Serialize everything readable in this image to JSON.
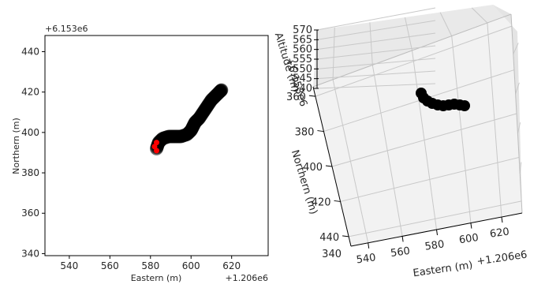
{
  "chart_data": [
    {
      "type": "scatter",
      "xlabel": "Eastern (m)",
      "ylabel": "Northern (m)",
      "x_offset_label": "+1.206e6",
      "y_offset_label": "+6.153e6",
      "xlim": [
        528,
        638
      ],
      "ylim": [
        339,
        448
      ],
      "xticks": [
        "540",
        "560",
        "580",
        "600",
        "620"
      ],
      "yticks": [
        "340",
        "360",
        "380",
        "400",
        "420",
        "440"
      ],
      "grid": false,
      "path_color": "#000000",
      "marker_color": "#ff0000",
      "track": [
        [
          583,
          392
        ],
        [
          584,
          395
        ],
        [
          586,
          397
        ],
        [
          589,
          398
        ],
        [
          592,
          398
        ],
        [
          595,
          398
        ],
        [
          598,
          399
        ],
        [
          600,
          401
        ],
        [
          601,
          403
        ],
        [
          602,
          405
        ],
        [
          604,
          407
        ],
        [
          606,
          410
        ],
        [
          608,
          413
        ],
        [
          610,
          416
        ],
        [
          612,
          418
        ],
        [
          614,
          420
        ],
        [
          615,
          421
        ]
      ],
      "marker": [
        [
          583,
          391
        ],
        [
          582,
          393
        ],
        [
          583,
          395
        ]
      ]
    },
    {
      "type": "scatter",
      "xlabel": "Eastern (m)",
      "ylabel": "Northern (m)",
      "zlabel": "Altitude (m)",
      "x_offset_label": "+1.206e6",
      "y_offset_label": "+6.153e6",
      "xticks": [
        "540",
        "560",
        "580",
        "600",
        "620"
      ],
      "yticks": [
        "360",
        "380",
        "400",
        "420",
        "440"
      ],
      "zticks": [
        "540",
        "545",
        "550",
        "555",
        "560",
        "565",
        "570"
      ],
      "y_extra_tick": "340",
      "grid": true,
      "path_color": "#000000"
    }
  ]
}
